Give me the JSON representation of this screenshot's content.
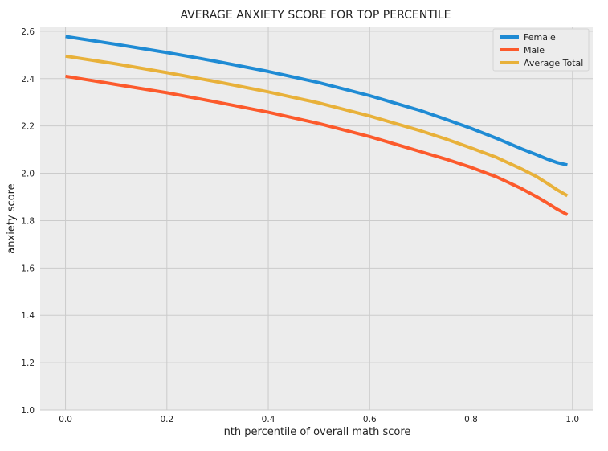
{
  "chart_data": {
    "type": "line",
    "title": "AVERAGE ANXIETY SCORE FOR TOP PERCENTILE",
    "xlabel": "nth percentile of overall math score",
    "ylabel": "anxiety score",
    "xlim": [
      -0.05,
      1.04
    ],
    "ylim": [
      1.0,
      2.62
    ],
    "xticks": [
      0.0,
      0.2,
      0.4,
      0.6,
      0.8,
      1.0
    ],
    "xtick_labels": [
      "0.0",
      "0.2",
      "0.4",
      "0.6",
      "0.8",
      "1.0"
    ],
    "yticks": [
      1.0,
      1.2,
      1.4,
      1.6,
      1.8,
      2.0,
      2.2,
      2.4,
      2.6
    ],
    "ytick_labels": [
      "1.0",
      "1.2",
      "1.4",
      "1.6",
      "1.8",
      "2.0",
      "2.2",
      "2.4",
      "2.6"
    ],
    "grid": true,
    "legend_position": "top-right",
    "series": [
      {
        "name": "Female",
        "color": "#1f8bd4",
        "x": [
          0.0,
          0.1,
          0.2,
          0.3,
          0.4,
          0.5,
          0.6,
          0.7,
          0.75,
          0.8,
          0.85,
          0.9,
          0.93,
          0.95,
          0.97,
          0.99
        ],
        "y": [
          2.578,
          2.545,
          2.51,
          2.472,
          2.43,
          2.383,
          2.328,
          2.265,
          2.228,
          2.19,
          2.148,
          2.103,
          2.078,
          2.06,
          2.045,
          2.035
        ]
      },
      {
        "name": "Male",
        "color": "#fc5a2c",
        "x": [
          0.0,
          0.1,
          0.2,
          0.3,
          0.4,
          0.5,
          0.6,
          0.7,
          0.75,
          0.8,
          0.85,
          0.9,
          0.93,
          0.95,
          0.97,
          0.99
        ],
        "y": [
          2.41,
          2.375,
          2.34,
          2.3,
          2.258,
          2.21,
          2.155,
          2.092,
          2.06,
          2.025,
          1.985,
          1.935,
          1.9,
          1.875,
          1.848,
          1.825
        ]
      },
      {
        "name": "Average Total",
        "color": "#e8b13a",
        "x": [
          0.0,
          0.1,
          0.2,
          0.3,
          0.4,
          0.5,
          0.6,
          0.7,
          0.75,
          0.8,
          0.85,
          0.9,
          0.93,
          0.95,
          0.97,
          0.99
        ],
        "y": [
          2.495,
          2.462,
          2.425,
          2.386,
          2.344,
          2.297,
          2.242,
          2.18,
          2.145,
          2.107,
          2.067,
          2.018,
          1.985,
          1.958,
          1.93,
          1.905
        ]
      }
    ]
  }
}
